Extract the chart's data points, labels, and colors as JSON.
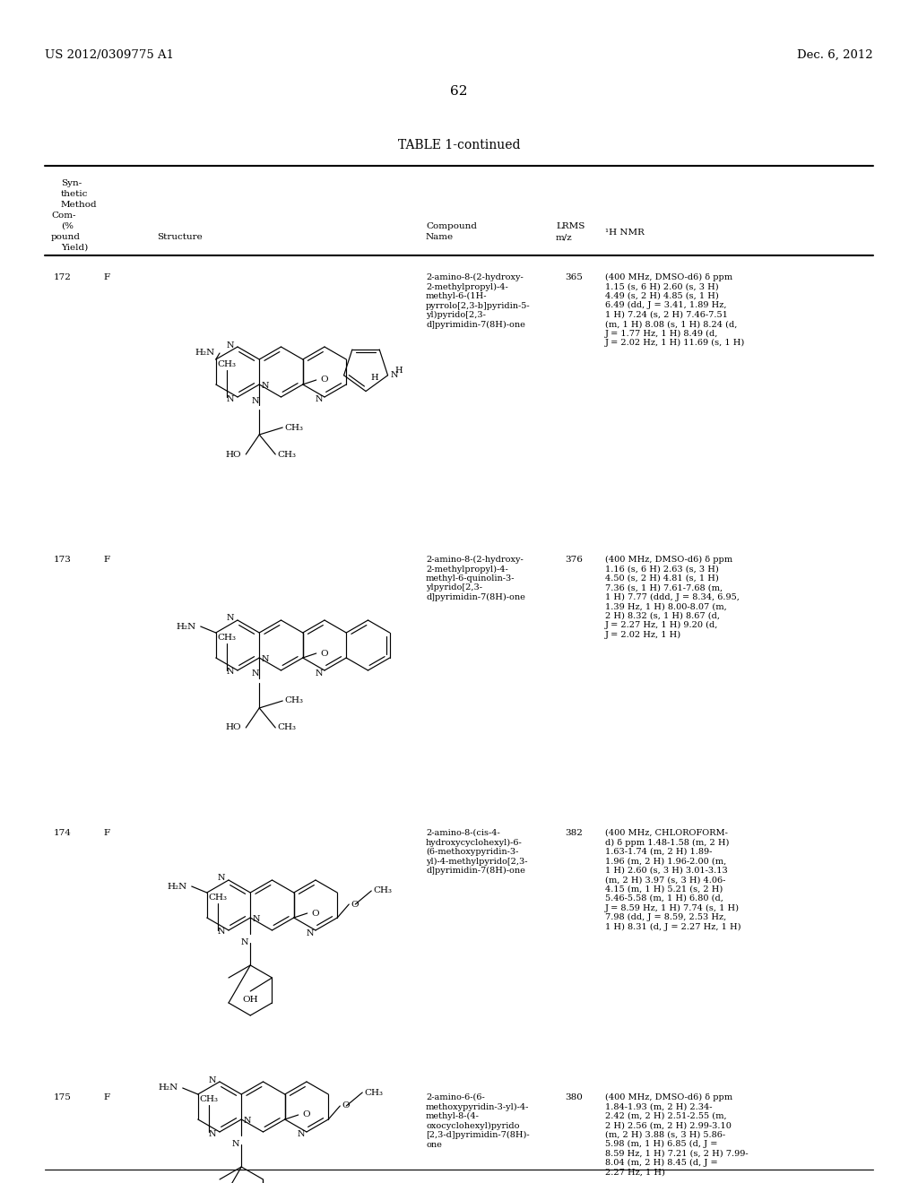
{
  "bg_color": "#ffffff",
  "page_number": "62",
  "patent_left": "US 2012/0309775 A1",
  "patent_right": "Dec. 6, 2012",
  "table_title": "TABLE 1-continued",
  "rows": [
    {
      "compound": "172",
      "method": "F",
      "lrms": "365",
      "name": "2-amino-8-(2-hydroxy-\n2-methylpropyl)-4-\nmethyl-6-(1H-\npyrrolo[2,3-b]pyridin-5-\nyl)pyrido[2,3-\nd]pyrimidin-7(8H)-one",
      "nmr": "(400 MHz, DMSO-d6) δ ppm\n1.15 (s, 6 H) 2.60 (s, 3 H)\n4.49 (s, 2 H) 4.85 (s, 1 H)\n6.49 (dd, J = 3.41, 1.89 Hz,\n1 H) 7.24 (s, 2 H) 7.46-7.51\n(m, 1 H) 8.08 (s, 1 H) 8.24 (d,\nJ = 1.77 Hz, 1 H) 8.49 (d,\nJ = 2.02 Hz, 1 H) 11.69 (s, 1 H)"
    },
    {
      "compound": "173",
      "method": "F",
      "lrms": "376",
      "name": "2-amino-8-(2-hydroxy-\n2-methylpropyl)-4-\nmethyl-6-quinolin-3-\nylpyrido[2,3-\nd]pyrimidin-7(8H)-one",
      "nmr": "(400 MHz, DMSO-d6) δ ppm\n1.16 (s, 6 H) 2.63 (s, 3 H)\n4.50 (s, 2 H) 4.81 (s, 1 H)\n7.36 (s, 1 H) 7.61-7.68 (m,\n1 H) 7.77 (ddd, J = 8.34, 6.95,\n1.39 Hz, 1 H) 8.00-8.07 (m,\n2 H) 8.32 (s, 1 H) 8.67 (d,\nJ = 2.27 Hz, 1 H) 9.20 (d,\nJ = 2.02 Hz, 1 H)"
    },
    {
      "compound": "174",
      "method": "F",
      "lrms": "382",
      "name": "2-amino-8-(cis-4-\nhydroxycyclohexyl)-6-\n(6-methoxypyridin-3-\nyl)-4-methylpyrido[2,3-\nd]pyrimidin-7(8H)-one",
      "nmr": "(400 MHz, CHLOROFORM-\nd) δ ppm 1.48-1.58 (m, 2 H)\n1.63-1.74 (m, 2 H) 1.89-\n1.96 (m, 2 H) 1.96-2.00 (m,\n1 H) 2.60 (s, 3 H) 3.01-3.13\n(m, 2 H) 3.97 (s, 3 H) 4.06-\n4.15 (m, 1 H) 5.21 (s, 2 H)\n5.46-5.58 (m, 1 H) 6.80 (d,\nJ = 8.59 Hz, 1 H) 7.74 (s, 1 H)\n7.98 (dd, J = 8.59, 2.53 Hz,\n1 H) 8.31 (d, J = 2.27 Hz, 1 H)"
    },
    {
      "compound": "175",
      "method": "F",
      "lrms": "380",
      "name": "2-amino-6-(6-\nmethoxypyridin-3-yl)-4-\nmethyl-8-(4-\noxocyclohexyl)pyrido\n[2,3-d]pyrimidin-7(8H)-\none",
      "nmr": "(400 MHz, DMSO-d6) δ ppm\n1.84-1.93 (m, 2 H) 2.34-\n2.42 (m, 2 H) 2.51-2.55 (m,\n2 H) 2.56 (m, 2 H) 2.99-3.10\n(m, 2 H) 3.88 (s, 3 H) 5.86-\n5.98 (m, 1 H) 6.85 (d, J =\n8.59 Hz, 1 H) 7.21 (s, 2 H) 7.99-\n8.04 (m, 2 H) 8.45 (d, J =\n2.27 Hz, 1 H)"
    }
  ]
}
